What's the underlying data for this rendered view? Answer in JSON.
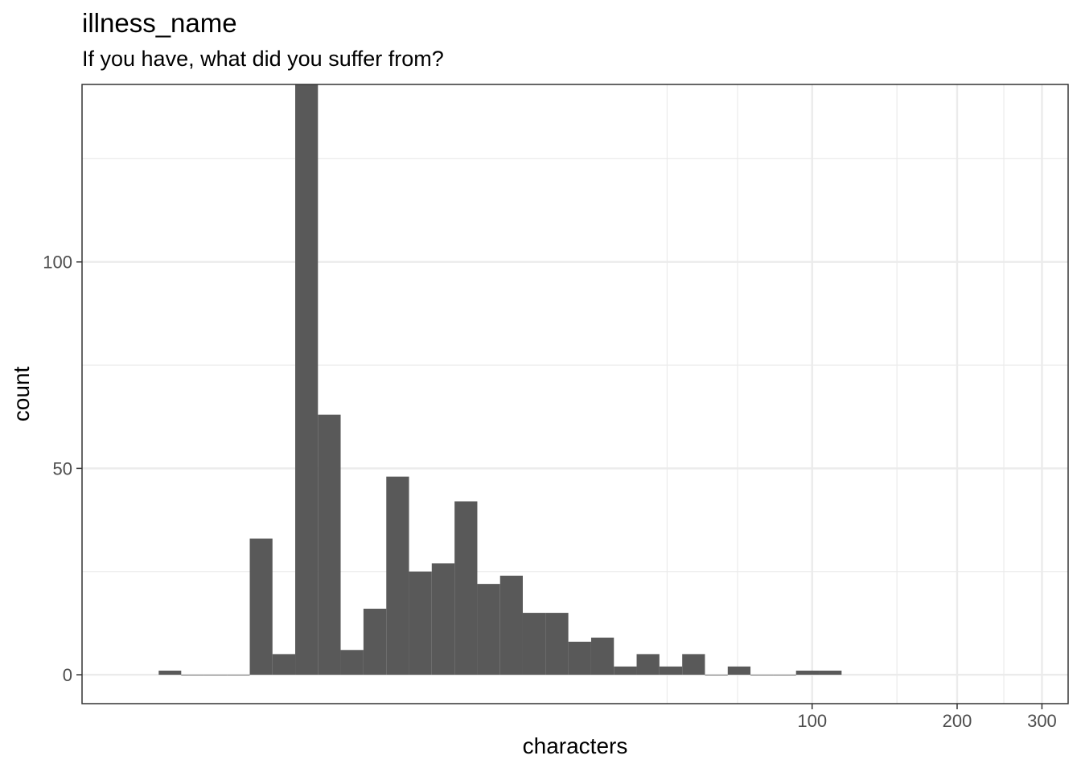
{
  "chart_data": {
    "type": "bar",
    "title": "illness_name",
    "subtitle": "If you have, what did you suffer from?",
    "xlabel": "characters",
    "ylabel": "count",
    "x_scale": "log10",
    "x_ticks": [
      100,
      200,
      300
    ],
    "x_tick_labels": [
      "100",
      "200",
      "300"
    ],
    "y_ticks": [
      0,
      50,
      100
    ],
    "y_tick_labels": [
      "0",
      "50",
      "100"
    ],
    "ylim": [
      -7,
      143
    ],
    "grid": true,
    "bins": [
      {
        "x0": 4.4,
        "x1": 4.9,
        "count": 1
      },
      {
        "x0": 4.9,
        "x1": 5.47,
        "count": 0
      },
      {
        "x0": 5.47,
        "x1": 6.1,
        "count": 0
      },
      {
        "x0": 6.1,
        "x1": 6.8,
        "count": 0
      },
      {
        "x0": 6.8,
        "x1": 7.58,
        "count": 33
      },
      {
        "x0": 7.58,
        "x1": 8.45,
        "count": 5
      },
      {
        "x0": 8.45,
        "x1": 9.42,
        "count": 143
      },
      {
        "x0": 9.42,
        "x1": 10.5,
        "count": 63
      },
      {
        "x0": 10.5,
        "x1": 11.71,
        "count": 6
      },
      {
        "x0": 11.71,
        "x1": 13.06,
        "count": 16
      },
      {
        "x0": 13.06,
        "x1": 14.56,
        "count": 48
      },
      {
        "x0": 14.56,
        "x1": 16.23,
        "count": 25
      },
      {
        "x0": 16.23,
        "x1": 18.1,
        "count": 27
      },
      {
        "x0": 18.1,
        "x1": 20.18,
        "count": 42
      },
      {
        "x0": 20.18,
        "x1": 22.5,
        "count": 22
      },
      {
        "x0": 22.5,
        "x1": 25.08,
        "count": 24
      },
      {
        "x0": 25.08,
        "x1": 27.97,
        "count": 15
      },
      {
        "x0": 27.97,
        "x1": 31.18,
        "count": 15
      },
      {
        "x0": 31.18,
        "x1": 34.77,
        "count": 8
      },
      {
        "x0": 34.77,
        "x1": 38.77,
        "count": 9
      },
      {
        "x0": 38.77,
        "x1": 43.22,
        "count": 2
      },
      {
        "x0": 43.22,
        "x1": 48.19,
        "count": 5
      },
      {
        "x0": 48.19,
        "x1": 53.74,
        "count": 2
      },
      {
        "x0": 53.74,
        "x1": 59.91,
        "count": 5
      },
      {
        "x0": 59.91,
        "x1": 66.8,
        "count": 0
      },
      {
        "x0": 66.8,
        "x1": 74.48,
        "count": 2
      },
      {
        "x0": 74.48,
        "x1": 83.05,
        "count": 0
      },
      {
        "x0": 83.05,
        "x1": 92.6,
        "count": 0
      },
      {
        "x0": 92.6,
        "x1": 103.25,
        "count": 1
      },
      {
        "x0": 103.25,
        "x1": 115.12,
        "count": 1
      }
    ],
    "bar_color": "#595959"
  }
}
